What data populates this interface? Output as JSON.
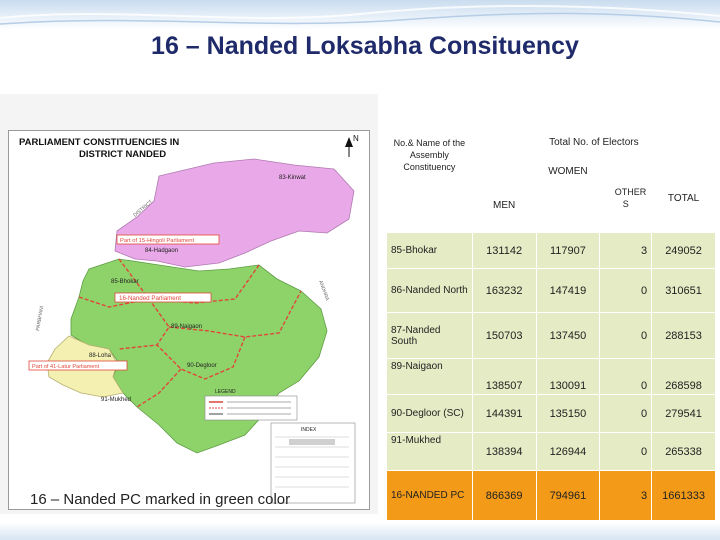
{
  "page": {
    "title": "16 – Nanded Loksabha Consituency"
  },
  "map": {
    "heading_line1": "PARLIAMENT CONSTITUENCIES IN",
    "heading_line2": "DISTRICT NANDED",
    "north_symbol": "N",
    "labels": {
      "kinwat": "83-Kinwat",
      "hingoli_part": "Part of 15-Hingoli Parliament",
      "hadgaon": "84-Hadgaon",
      "bhokar": "85-Bhokar",
      "nanded_part": "16-Nanded Parliament",
      "naigaon": "89-Naigaon",
      "loha": "88-Loha",
      "latur_part": "Part of 41-Latur Parliament",
      "degloor": "90-Degloor",
      "mukhed": "91-Mukhed",
      "legend": "LEGEND",
      "index": "INDEX"
    },
    "colors": {
      "nanded": "#8ed36a",
      "hingoli": "#e9a8e8",
      "latur": "#f3f0b2",
      "boundary_red": "#e0473a"
    },
    "caption": "16 – Nanded PC marked in green color"
  },
  "table": {
    "header": {
      "name": "No.& Name of the Assembly Constituency",
      "total_electors": "Total No. of Electors",
      "men": "MEN",
      "women": "WOMEN",
      "others": "OTHER S",
      "total": "TOTAL"
    },
    "rows": [
      {
        "name": "85-Bhokar",
        "men": "131142",
        "women": "117907",
        "others": "3",
        "total": "249052"
      },
      {
        "name": "86-Nanded North",
        "men": "163232",
        "women": "147419",
        "others": "0",
        "total": "310651"
      },
      {
        "name": "87-Nanded South",
        "men": "150703",
        "women": "137450",
        "others": "0",
        "total": "288153"
      },
      {
        "name": "89-Naigaon",
        "men": "138507",
        "women": "130091",
        "others": "0",
        "total": "268598"
      },
      {
        "name": "90-Degloor (SC)",
        "men": "144391",
        "women": "135150",
        "others": "0",
        "total": "279541"
      },
      {
        "name": "91-Mukhed",
        "men": "138394",
        "women": "126944",
        "others": "0",
        "total": "265338"
      }
    ],
    "total_row": {
      "name": "16-NANDED PC",
      "men": "866369",
      "women": "794961",
      "others": "3",
      "total": "1661333"
    }
  }
}
